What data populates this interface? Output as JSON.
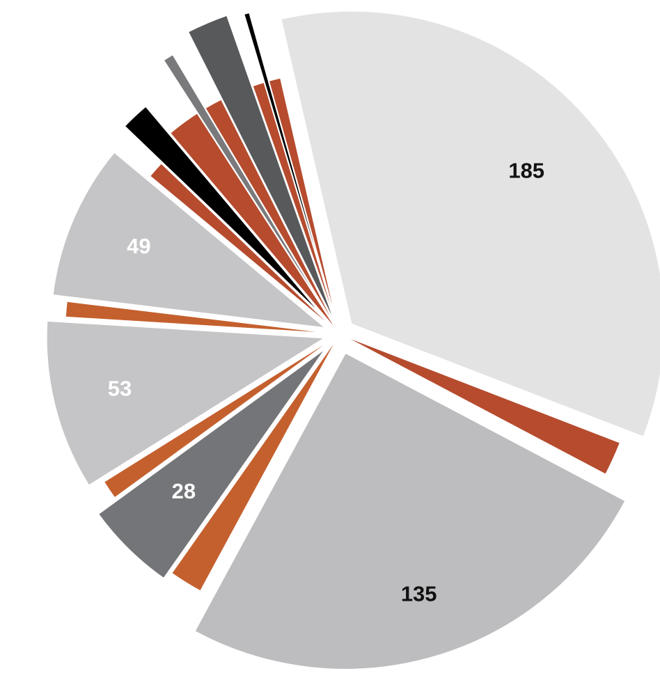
{
  "chart_data": {
    "type": "pie",
    "slices": [
      {
        "label": "185",
        "value": 185,
        "color": "#e3e3e3",
        "label_color": "#111111"
      },
      {
        "label": "",
        "value": 10,
        "color": "#b64b2e"
      },
      {
        "label": "135",
        "value": 135,
        "color": "#bdbdbf",
        "label_color": "#111111"
      },
      {
        "label": "",
        "value": 10,
        "color": "#c4602e"
      },
      {
        "label": "28",
        "value": 28,
        "color": "#747578",
        "label_color": "#ffffff"
      },
      {
        "label": "",
        "value": 6,
        "color": "#c4602e"
      },
      {
        "label": "53",
        "value": 53,
        "color": "#c5c5c7",
        "label_color": "#ffffff"
      },
      {
        "label": "",
        "value": 5,
        "color": "#c4602e"
      },
      {
        "label": "49",
        "value": 49,
        "color": "#c5c5c7",
        "label_color": "#ffffff"
      },
      {
        "label": "",
        "value": 6,
        "color": "#b64b2e"
      },
      {
        "label": "",
        "value": 9,
        "color": "#000000"
      },
      {
        "label": "",
        "value": 11,
        "color": "#b64b2e"
      },
      {
        "label": "",
        "value": 3,
        "color": "#7a7a7c"
      },
      {
        "label": "",
        "value": 6,
        "color": "#b64b2e"
      },
      {
        "label": "",
        "value": 11,
        "color": "#58595b"
      },
      {
        "label": "",
        "value": 4,
        "color": "#b64b2e"
      },
      {
        "label": "",
        "value": 1.5,
        "color": "#000000"
      },
      {
        "label": "",
        "value": 4,
        "color": "#b64b2e"
      }
    ]
  }
}
